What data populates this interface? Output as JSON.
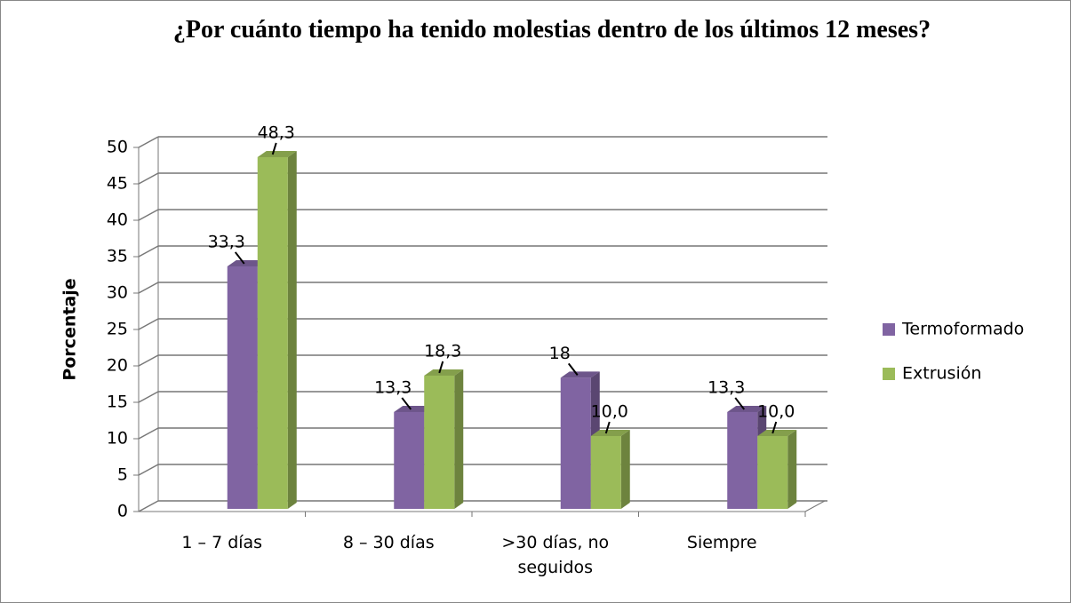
{
  "chart_data": {
    "type": "bar3d",
    "title": "¿Por cuánto tiempo ha tenido molestias dentro de los últimos 12 meses?",
    "ylabel": "Porcentaje",
    "categories": [
      "1 – 7 días",
      "8 – 30 días",
      ">30 días, no seguidos",
      "Siempre"
    ],
    "series": [
      {
        "name": "Termoformado",
        "color": "#8064a2",
        "values": [
          33.3,
          13.3,
          18,
          13.3
        ],
        "value_labels": [
          "33,3",
          "13,3",
          "18",
          "13,3"
        ]
      },
      {
        "name": "Extrusión",
        "color": "#9bbb59",
        "values": [
          48.3,
          18.3,
          10.0,
          10.0
        ],
        "value_labels": [
          "48,3",
          "18,3",
          "10,0",
          "10,0"
        ]
      }
    ],
    "ylim": [
      0,
      50
    ],
    "yticks": [
      0,
      5,
      10,
      15,
      20,
      25,
      30,
      35,
      40,
      45,
      50
    ],
    "grid": true,
    "legend": "right"
  }
}
